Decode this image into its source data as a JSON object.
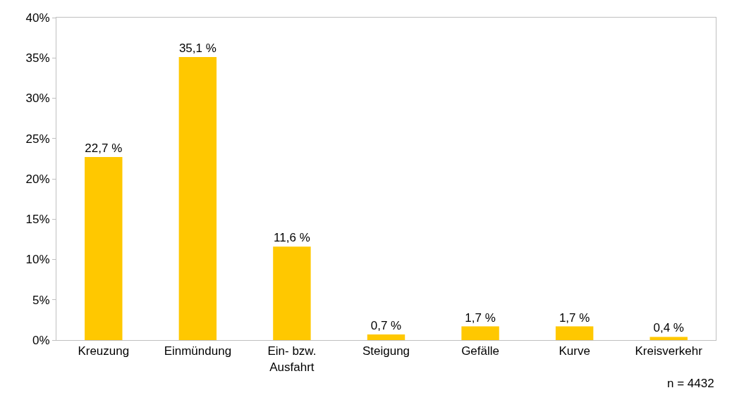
{
  "chart_data": {
    "type": "bar",
    "categories": [
      "Kreuzung",
      "Einmündung",
      "Ein- bzw. Ausfahrt",
      "Steigung",
      "Gefälle",
      "Kurve",
      "Kreisverkehr"
    ],
    "values": [
      22.7,
      35.1,
      11.6,
      0.7,
      1.7,
      1.7,
      0.4
    ],
    "value_labels": [
      "22,7 %",
      "35,1 %",
      "11,6 %",
      "0,7 %",
      "1,7 %",
      "1,7 %",
      "0,4 %"
    ],
    "color": "#ffc800",
    "ylim": [
      0,
      40
    ],
    "yticks": [
      {
        "value": 0,
        "label": "0%"
      },
      {
        "value": 5,
        "label": "5%"
      },
      {
        "value": 10,
        "label": "10%"
      },
      {
        "value": 15,
        "label": "15%"
      },
      {
        "value": 20,
        "label": "20%"
      },
      {
        "value": 25,
        "label": "25%"
      },
      {
        "value": 30,
        "label": "30%"
      },
      {
        "value": 35,
        "label": "35%"
      },
      {
        "value": 40,
        "label": "40%"
      }
    ],
    "legend": false,
    "annotations": [
      "n = 4432"
    ]
  }
}
